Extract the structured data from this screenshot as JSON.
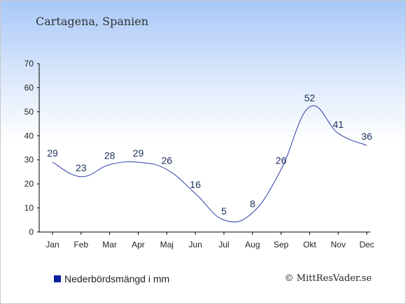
{
  "chart_data": {
    "type": "line",
    "title": "Cartagena, Spanien",
    "categories": [
      "Jan",
      "Feb",
      "Mar",
      "Apr",
      "Maj",
      "Jun",
      "Jul",
      "Aug",
      "Sep",
      "Okt",
      "Nov",
      "Dec"
    ],
    "series": [
      {
        "name": "Nederbördsmängd i mm",
        "values": [
          29,
          23,
          28,
          29,
          26,
          16,
          5,
          8,
          26,
          52,
          41,
          36
        ]
      }
    ],
    "ylim": [
      0,
      70
    ],
    "yticks": [
      0,
      10,
      20,
      30,
      40,
      50,
      60,
      70
    ],
    "legend_position": "bottom-left",
    "line_color": "#2a3ca8",
    "legend_color": "#0a1fa0"
  },
  "credit": "© MittResVader.se"
}
